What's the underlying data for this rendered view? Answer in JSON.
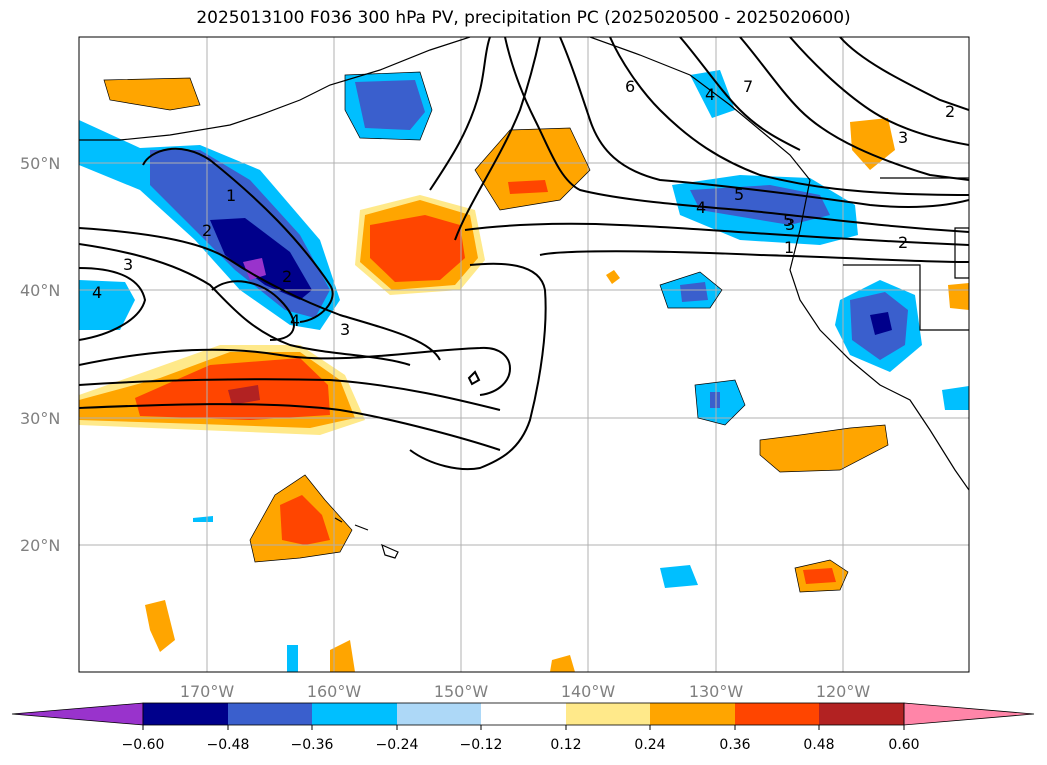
{
  "title": "2025013100 F036 300 hPa PV, precipitation PC (2025020500 - 2025020600)",
  "lat_labels": [
    "50°N",
    "40°N",
    "30°N",
    "20°N"
  ],
  "lon_labels": [
    "170°W",
    "160°W",
    "150°W",
    "140°W",
    "130°W",
    "120°W"
  ],
  "colorbar": {
    "ticks": [
      "−0.60",
      "−0.48",
      "−0.36",
      "−0.24",
      "−0.12",
      "0.12",
      "0.24",
      "0.36",
      "0.48",
      "0.60"
    ],
    "colors": [
      "#9933cc",
      "#00008b",
      "#3a5fcd",
      "#00bfff",
      "#add8f7",
      "#ffffff",
      "#ffe98a",
      "#ffa500",
      "#ff4500",
      "#b22222",
      "#ff85a8"
    ]
  },
  "pv_contour_labels": [
    "1",
    "2",
    "3",
    "4",
    "5",
    "6",
    "7",
    "4",
    "5",
    "3",
    "4",
    "2",
    "3",
    "4",
    "2",
    "3",
    "1",
    "2"
  ]
}
